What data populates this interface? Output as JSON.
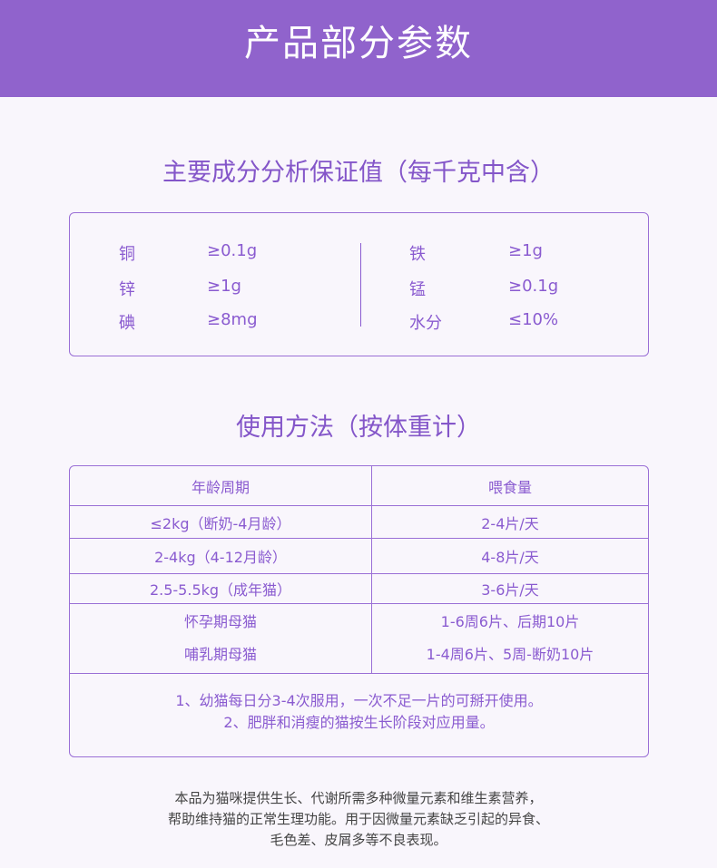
{
  "header": {
    "title": "产品部分参数"
  },
  "guarantee": {
    "title": "主要成分分析保证值（每千克中含）",
    "left": [
      {
        "name": "铜",
        "value": "≥0.1g"
      },
      {
        "name": "锌",
        "value": "≥1g"
      },
      {
        "name": "碘",
        "value": "≥8mg"
      }
    ],
    "right": [
      {
        "name": "铁",
        "value": "≥1g"
      },
      {
        "name": "锰",
        "value": "≥0.1g"
      },
      {
        "name": "水分",
        "value": "≤10%"
      }
    ]
  },
  "usage": {
    "title": "使用方法（按体重计）",
    "headers": [
      "年龄周期",
      "喂食量"
    ],
    "rows": [
      [
        "≤2kg（断奶-4月龄）",
        "2-4片/天"
      ],
      [
        "2-4kg（4-12月龄）",
        "4-8片/天"
      ],
      [
        "2.5-5.5kg（成年猫）",
        "3-6片/天"
      ]
    ],
    "special": [
      [
        "怀孕期母猫",
        "1-6周6片、后期10片"
      ],
      [
        "哺乳期母猫",
        "1-4周6片、5周-断奶10片"
      ]
    ],
    "notes": [
      "1、幼猫每日分3-4次服用，一次不足一片的可掰开使用。",
      "2、肥胖和消瘦的猫按生长阶段对应用量。"
    ]
  },
  "footer": {
    "lines": [
      "本品为猫咪提供生长、代谢所需多种微量元素和维生素营养，",
      "帮助维持猫的正常生理功能。用于因微量元素缺乏引起的异食、",
      "毛色差、皮屑多等不良表现。"
    ]
  }
}
